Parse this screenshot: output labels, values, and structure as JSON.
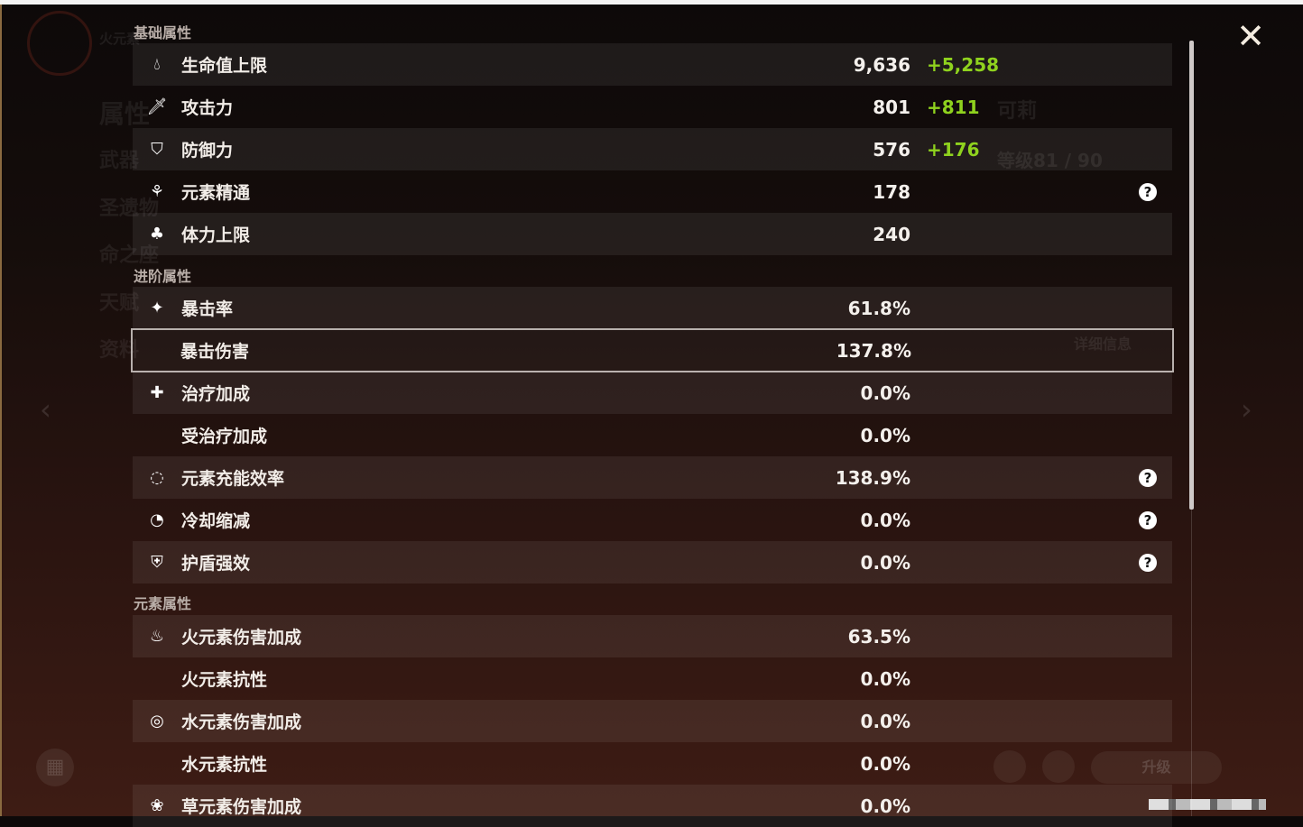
{
  "close_icon": "close-icon",
  "background": {
    "element_label": "火元素",
    "nav": [
      "属性",
      "武器",
      "圣遗物",
      "命之座",
      "天赋",
      "资料"
    ],
    "character_name": "可莉",
    "level": "等级81 / 90",
    "detail_button": "详细信息",
    "upgrade_button": "升级"
  },
  "colors": {
    "bonus": "#8fd21e",
    "highlight_border": "#b8b0ad"
  },
  "sections": [
    {
      "title": "基础属性",
      "rows": [
        {
          "label": "生命值上限",
          "value": "9,636",
          "bonus": "+5,258",
          "icon": "hp-drop-icon"
        },
        {
          "label": "攻击力",
          "value": "801",
          "bonus": "+811",
          "icon": "sword-icon"
        },
        {
          "label": "防御力",
          "value": "576",
          "bonus": "+176",
          "icon": "shield-icon"
        },
        {
          "label": "元素精通",
          "value": "178",
          "icon": "elemental-mastery-icon",
          "help": "?"
        },
        {
          "label": "体力上限",
          "value": "240",
          "icon": "stamina-icon"
        }
      ]
    },
    {
      "title": "进阶属性",
      "rows": [
        {
          "label": "暴击率",
          "value": "61.8%",
          "icon": "crit-rate-icon"
        },
        {
          "label": "暴击伤害",
          "value": "137.8%",
          "selected": true
        },
        {
          "label": "治疗加成",
          "value": "0.0%",
          "icon": "healing-cross-icon"
        },
        {
          "label": "受治疗加成",
          "value": "0.0%"
        },
        {
          "label": "元素充能效率",
          "value": "138.9%",
          "icon": "energy-recharge-icon",
          "help": "?"
        },
        {
          "label": "冷却缩减",
          "value": "0.0%",
          "icon": "cooldown-icon",
          "help": "?"
        },
        {
          "label": "护盾强效",
          "value": "0.0%",
          "icon": "shield-strength-icon",
          "help": "?"
        }
      ]
    },
    {
      "title": "元素属性",
      "rows": [
        {
          "label": "火元素伤害加成",
          "value": "63.5%",
          "icon": "pyro-icon"
        },
        {
          "label": "火元素抗性",
          "value": "0.0%"
        },
        {
          "label": "水元素伤害加成",
          "value": "0.0%",
          "icon": "hydro-icon"
        },
        {
          "label": "水元素抗性",
          "value": "0.0%"
        },
        {
          "label": "草元素伤害加成",
          "value": "0.0%",
          "icon": "dendro-icon"
        }
      ]
    }
  ]
}
